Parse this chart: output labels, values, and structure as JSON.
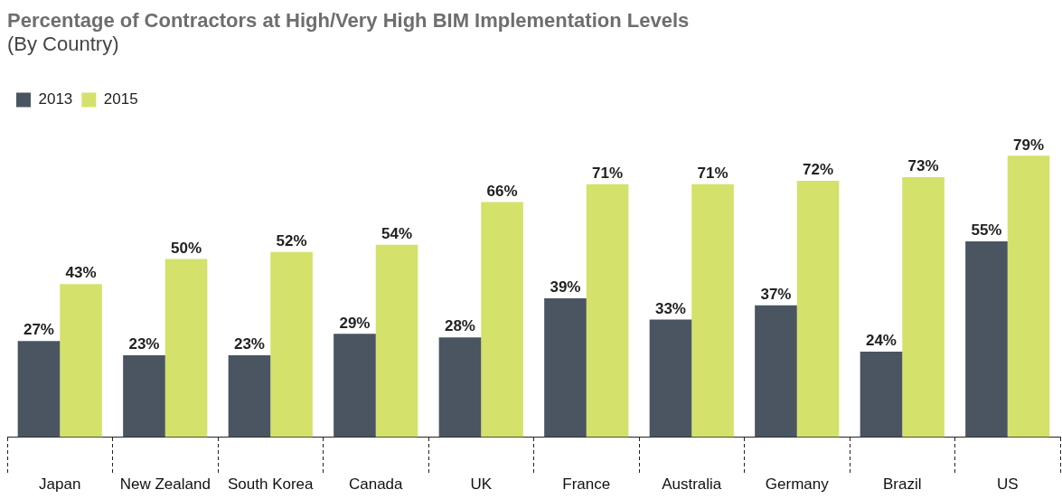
{
  "chart_data": {
    "type": "bar",
    "title": "Percentage of Contractors at High/Very High BIM Implementation Levels",
    "subtitle": "(By Country)",
    "categories": [
      "Japan",
      "New Zealand",
      "South Korea",
      "Canada",
      "UK",
      "France",
      "Australia",
      "Germany",
      "Brazil",
      "US"
    ],
    "series": [
      {
        "name": "2013",
        "color": "#4a5561",
        "values": [
          27,
          23,
          23,
          29,
          28,
          39,
          33,
          37,
          24,
          55
        ],
        "value_labels": [
          "27%",
          "23%",
          "23%",
          "29%",
          "28%",
          "39%",
          "33%",
          "37%",
          "24%",
          "55%"
        ]
      },
      {
        "name": "2015",
        "color": "#d4e16b",
        "values": [
          43,
          50,
          52,
          54,
          66,
          71,
          71,
          72,
          73,
          79
        ],
        "value_labels": [
          "43%",
          "50%",
          "52%",
          "54%",
          "66%",
          "71%",
          "71%",
          "72%",
          "73%",
          "79%"
        ]
      }
    ],
    "legend": "top left"
  }
}
